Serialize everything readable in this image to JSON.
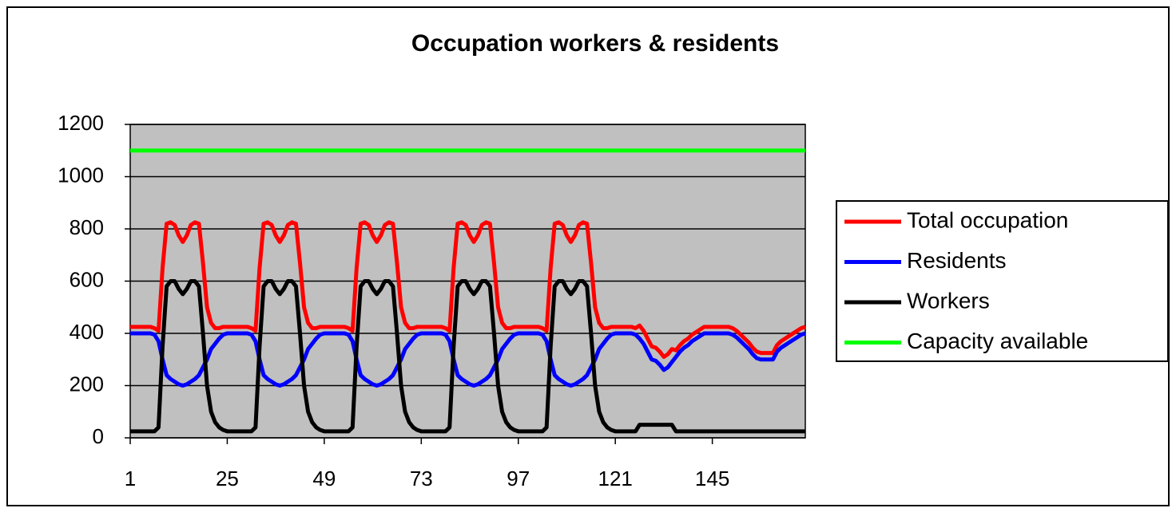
{
  "chart_data": {
    "type": "line",
    "title": "Occupation workers & residents",
    "x": [
      1,
      2,
      3,
      4,
      5,
      6,
      7,
      8,
      9,
      10,
      11,
      12,
      13,
      14,
      15,
      16,
      17,
      18,
      19,
      20,
      21,
      22,
      23,
      24,
      25,
      26,
      27,
      28,
      29,
      30,
      31,
      32,
      33,
      34,
      35,
      36,
      37,
      38,
      39,
      40,
      41,
      42,
      43,
      44,
      45,
      46,
      47,
      48,
      49,
      50,
      51,
      52,
      53,
      54,
      55,
      56,
      57,
      58,
      59,
      60,
      61,
      62,
      63,
      64,
      65,
      66,
      67,
      68,
      69,
      70,
      71,
      72,
      73,
      74,
      75,
      76,
      77,
      78,
      79,
      80,
      81,
      82,
      83,
      84,
      85,
      86,
      87,
      88,
      89,
      90,
      91,
      92,
      93,
      94,
      95,
      96,
      97,
      98,
      99,
      100,
      101,
      102,
      103,
      104,
      105,
      106,
      107,
      108,
      109,
      110,
      111,
      112,
      113,
      114,
      115,
      116,
      117,
      118,
      119,
      120,
      121,
      122,
      123,
      124,
      125,
      126,
      127,
      128,
      129,
      130,
      131,
      132,
      133,
      134,
      135,
      136,
      137,
      138,
      139,
      140,
      141,
      142,
      143,
      144,
      145,
      146,
      147,
      148,
      149,
      150,
      151,
      152,
      153,
      154,
      155,
      156,
      157,
      158,
      159,
      160,
      161,
      162,
      163,
      164,
      165,
      166,
      167,
      168
    ],
    "series": [
      {
        "name": "Total occupation",
        "color": "#ff0000",
        "values": [
          425,
          425,
          425,
          425,
          425,
          425,
          420,
          410,
          650,
          820,
          825,
          815,
          775,
          750,
          775,
          815,
          825,
          820,
          670,
          500,
          440,
          420,
          420,
          425,
          425,
          425,
          425,
          425,
          425,
          425,
          420,
          410,
          650,
          820,
          825,
          815,
          775,
          750,
          775,
          815,
          825,
          820,
          670,
          500,
          440,
          420,
          420,
          425,
          425,
          425,
          425,
          425,
          425,
          425,
          420,
          410,
          650,
          820,
          825,
          815,
          775,
          750,
          775,
          815,
          825,
          820,
          670,
          500,
          440,
          420,
          420,
          425,
          425,
          425,
          425,
          425,
          425,
          425,
          420,
          410,
          650,
          820,
          825,
          815,
          775,
          750,
          775,
          815,
          825,
          820,
          670,
          500,
          440,
          420,
          420,
          425,
          425,
          425,
          425,
          425,
          425,
          425,
          420,
          410,
          650,
          820,
          825,
          815,
          775,
          750,
          775,
          815,
          825,
          820,
          670,
          500,
          440,
          420,
          420,
          425,
          425,
          425,
          425,
          425,
          425,
          420,
          430,
          410,
          380,
          350,
          345,
          330,
          310,
          320,
          340,
          335,
          355,
          370,
          380,
          395,
          405,
          415,
          425,
          425,
          425,
          425,
          425,
          425,
          425,
          420,
          410,
          395,
          380,
          365,
          345,
          330,
          325,
          325,
          325,
          325,
          355,
          370,
          380,
          390,
          400,
          410,
          420,
          425
        ]
      },
      {
        "name": "Residents",
        "color": "#0000ff",
        "values": [
          400,
          400,
          400,
          400,
          400,
          400,
          395,
          370,
          300,
          240,
          225,
          215,
          205,
          200,
          205,
          215,
          225,
          240,
          270,
          300,
          340,
          360,
          380,
          395,
          400,
          400,
          400,
          400,
          400,
          400,
          395,
          370,
          300,
          240,
          225,
          215,
          205,
          200,
          205,
          215,
          225,
          240,
          270,
          300,
          340,
          360,
          380,
          395,
          400,
          400,
          400,
          400,
          400,
          400,
          395,
          370,
          300,
          240,
          225,
          215,
          205,
          200,
          205,
          215,
          225,
          240,
          270,
          300,
          340,
          360,
          380,
          395,
          400,
          400,
          400,
          400,
          400,
          400,
          395,
          370,
          300,
          240,
          225,
          215,
          205,
          200,
          205,
          215,
          225,
          240,
          270,
          300,
          340,
          360,
          380,
          395,
          400,
          400,
          400,
          400,
          400,
          400,
          395,
          370,
          300,
          240,
          225,
          215,
          205,
          200,
          205,
          215,
          225,
          240,
          270,
          300,
          340,
          360,
          380,
          395,
          400,
          400,
          400,
          400,
          400,
          395,
          380,
          360,
          330,
          300,
          295,
          280,
          260,
          270,
          290,
          310,
          330,
          345,
          355,
          370,
          380,
          390,
          400,
          400,
          400,
          400,
          400,
          400,
          400,
          395,
          385,
          370,
          355,
          340,
          320,
          305,
          300,
          300,
          300,
          300,
          330,
          345,
          355,
          365,
          375,
          385,
          395,
          400
        ]
      },
      {
        "name": "Workers",
        "color": "#000000",
        "values": [
          25,
          25,
          25,
          25,
          25,
          25,
          25,
          40,
          350,
          580,
          600,
          600,
          570,
          550,
          570,
          600,
          600,
          580,
          400,
          200,
          100,
          60,
          40,
          30,
          25,
          25,
          25,
          25,
          25,
          25,
          25,
          40,
          350,
          580,
          600,
          600,
          570,
          550,
          570,
          600,
          600,
          580,
          400,
          200,
          100,
          60,
          40,
          30,
          25,
          25,
          25,
          25,
          25,
          25,
          25,
          40,
          350,
          580,
          600,
          600,
          570,
          550,
          570,
          600,
          600,
          580,
          400,
          200,
          100,
          60,
          40,
          30,
          25,
          25,
          25,
          25,
          25,
          25,
          25,
          40,
          350,
          580,
          600,
          600,
          570,
          550,
          570,
          600,
          600,
          580,
          400,
          200,
          100,
          60,
          40,
          30,
          25,
          25,
          25,
          25,
          25,
          25,
          25,
          40,
          350,
          580,
          600,
          600,
          570,
          550,
          570,
          600,
          600,
          580,
          400,
          200,
          100,
          60,
          40,
          30,
          25,
          25,
          25,
          25,
          25,
          25,
          50,
          50,
          50,
          50,
          50,
          50,
          50,
          50,
          50,
          25,
          25,
          25,
          25,
          25,
          25,
          25,
          25,
          25,
          25,
          25,
          25,
          25,
          25,
          25,
          25,
          25,
          25,
          25,
          25,
          25,
          25,
          25,
          25,
          25,
          25,
          25,
          25,
          25,
          25,
          25,
          25,
          25
        ]
      },
      {
        "name": "Capacity available",
        "color": "#00ff00",
        "values": [
          1100,
          1100,
          1100,
          1100,
          1100,
          1100,
          1100,
          1100,
          1100,
          1100,
          1100,
          1100,
          1100,
          1100,
          1100,
          1100,
          1100,
          1100,
          1100,
          1100,
          1100,
          1100,
          1100,
          1100,
          1100,
          1100,
          1100,
          1100,
          1100,
          1100,
          1100,
          1100,
          1100,
          1100,
          1100,
          1100,
          1100,
          1100,
          1100,
          1100,
          1100,
          1100,
          1100,
          1100,
          1100,
          1100,
          1100,
          1100,
          1100,
          1100,
          1100,
          1100,
          1100,
          1100,
          1100,
          1100,
          1100,
          1100,
          1100,
          1100,
          1100,
          1100,
          1100,
          1100,
          1100,
          1100,
          1100,
          1100,
          1100,
          1100,
          1100,
          1100,
          1100,
          1100,
          1100,
          1100,
          1100,
          1100,
          1100,
          1100,
          1100,
          1100,
          1100,
          1100,
          1100,
          1100,
          1100,
          1100,
          1100,
          1100,
          1100,
          1100,
          1100,
          1100,
          1100,
          1100,
          1100,
          1100,
          1100,
          1100,
          1100,
          1100,
          1100,
          1100,
          1100,
          1100,
          1100,
          1100,
          1100,
          1100,
          1100,
          1100,
          1100,
          1100,
          1100,
          1100,
          1100,
          1100,
          1100,
          1100,
          1100,
          1100,
          1100,
          1100,
          1100,
          1100,
          1100,
          1100,
          1100,
          1100,
          1100,
          1100,
          1100,
          1100,
          1100,
          1100,
          1100,
          1100,
          1100,
          1100,
          1100,
          1100,
          1100,
          1100,
          1100,
          1100,
          1100,
          1100,
          1100,
          1100,
          1100,
          1100,
          1100,
          1100,
          1100,
          1100,
          1100,
          1100,
          1100,
          1100,
          1100,
          1100,
          1100,
          1100,
          1100,
          1100,
          1100,
          1100
        ]
      }
    ],
    "xlim": [
      1,
      168
    ],
    "xticks": [
      1,
      25,
      49,
      73,
      97,
      121,
      145
    ],
    "ylim": [
      0,
      1200
    ],
    "yticks": [
      0,
      200,
      400,
      600,
      800,
      1000,
      1200
    ],
    "grid": true,
    "legend": "right"
  }
}
